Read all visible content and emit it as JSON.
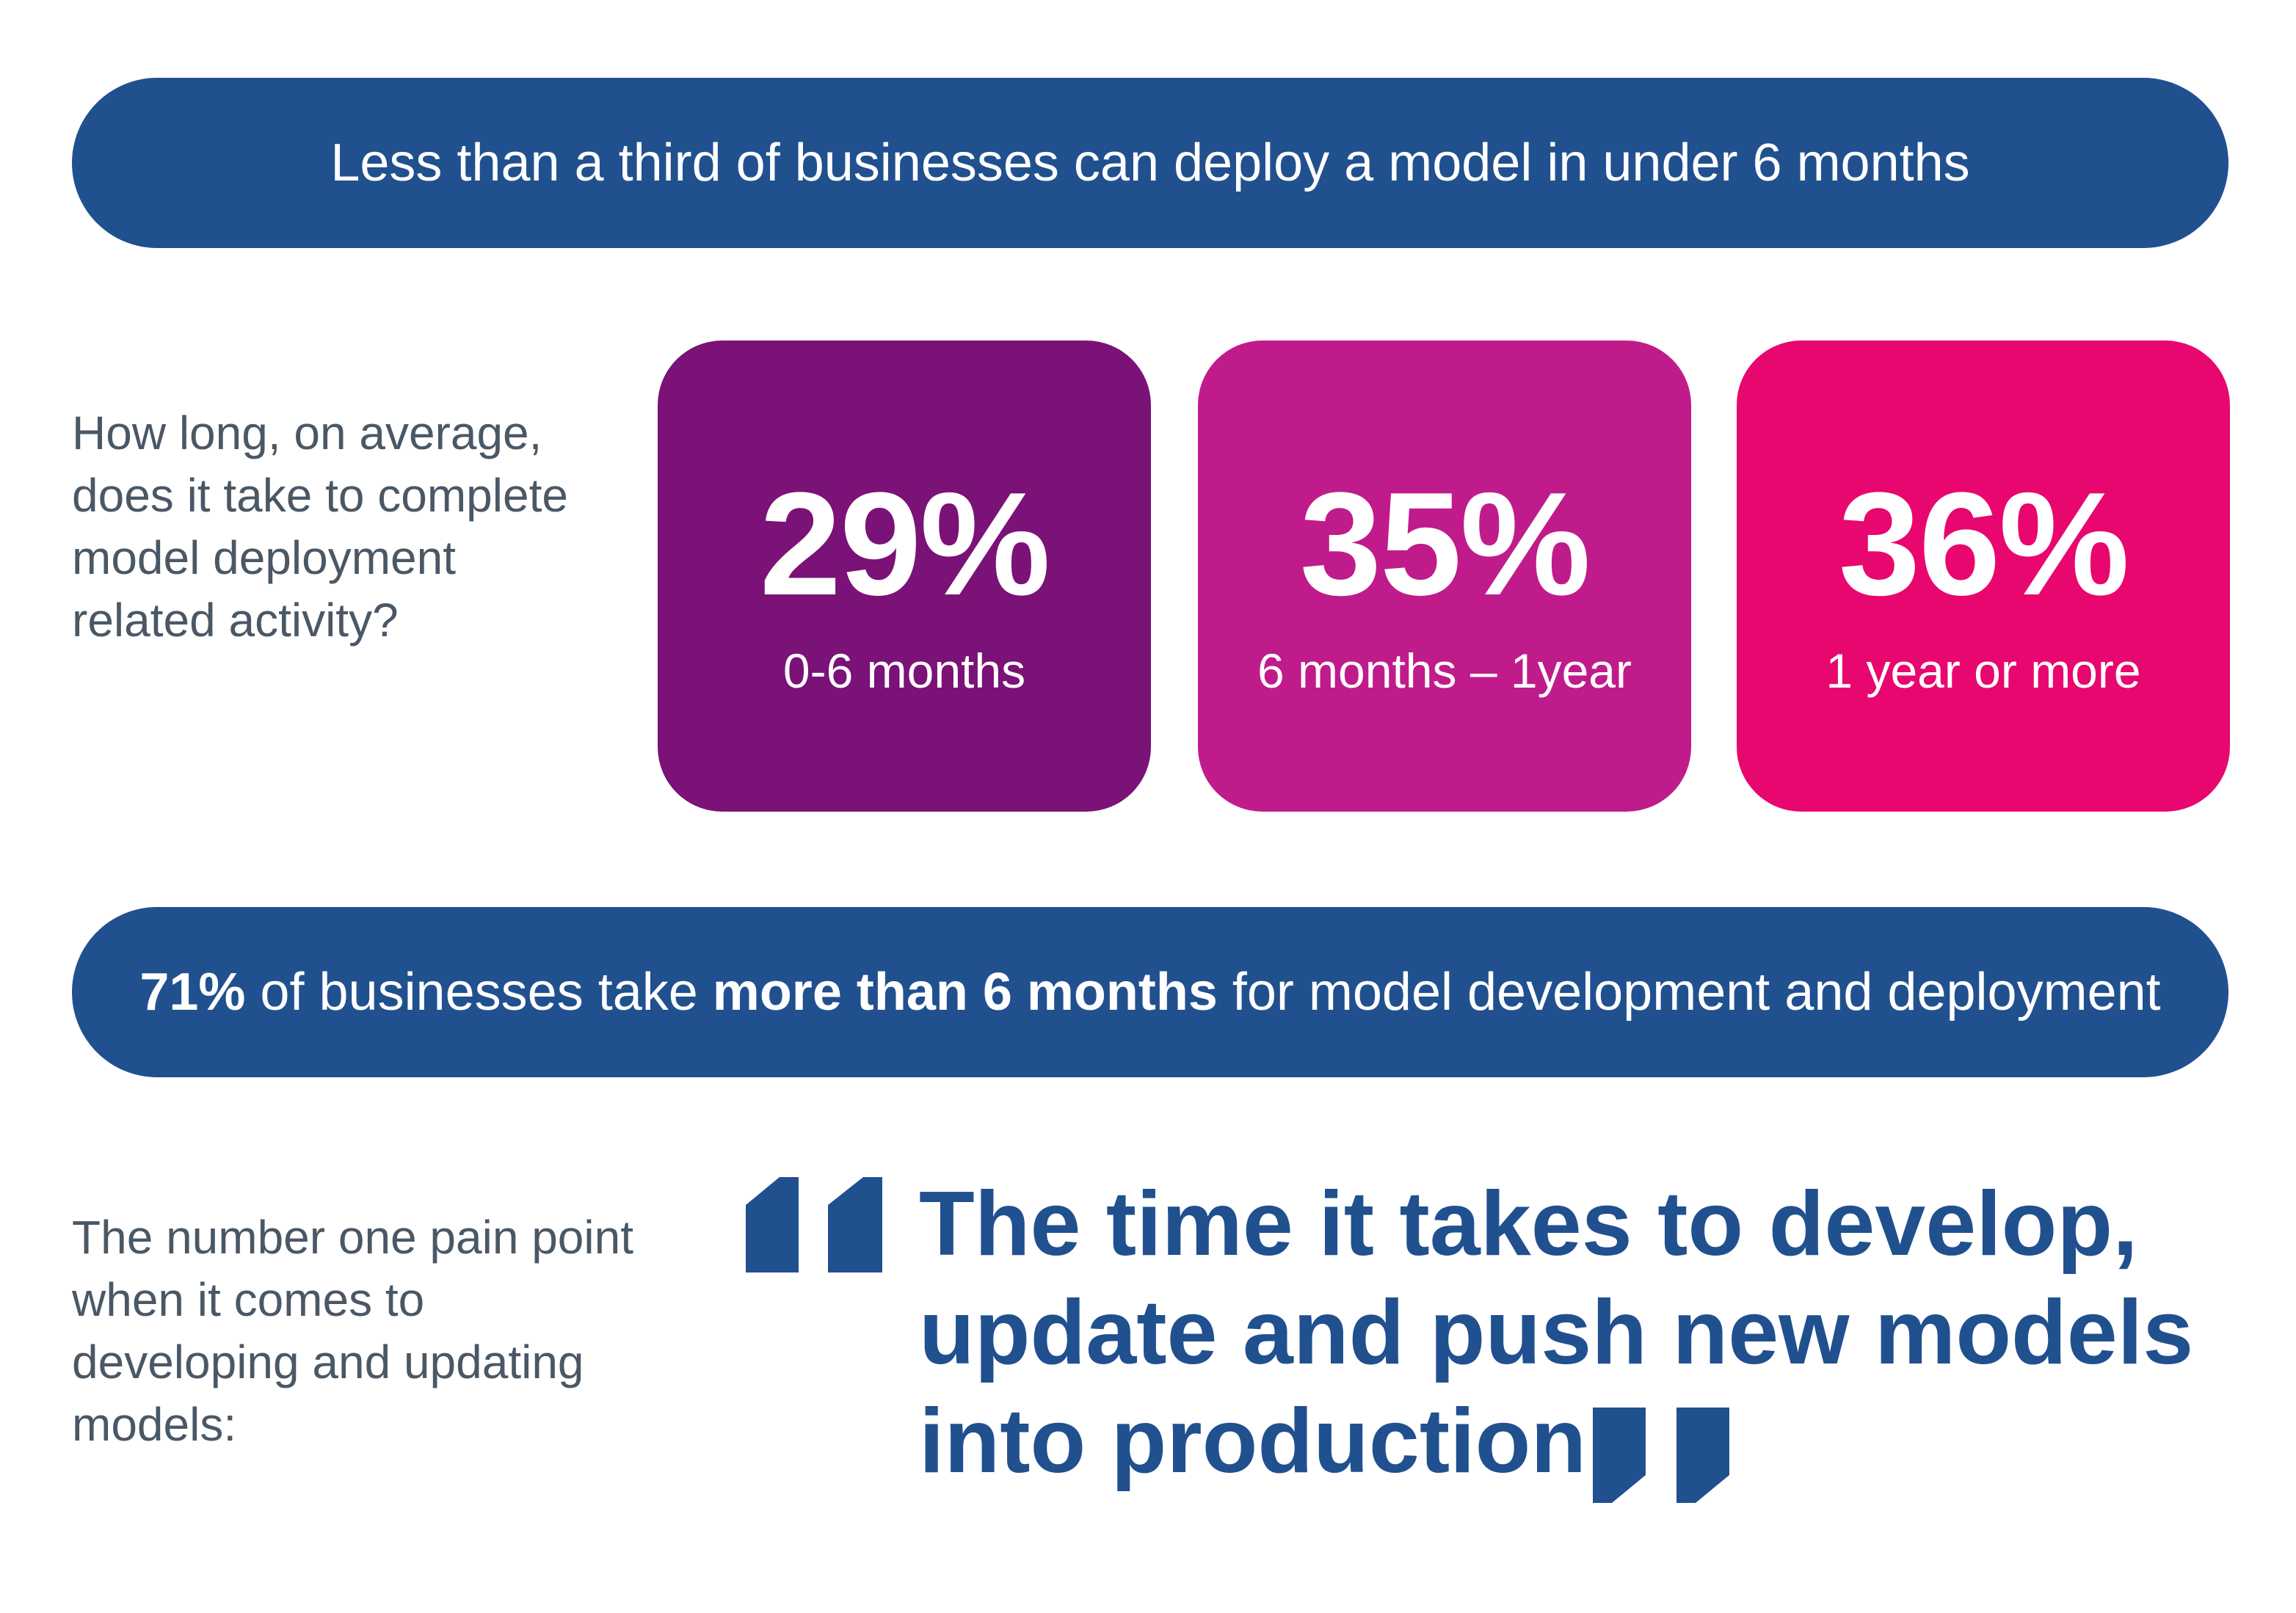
{
  "banner_top": {
    "text": "Less than a third of businesses can deploy a model in under 6 months"
  },
  "question": {
    "text": "How long, on average, does it take to complete model deployment related activity?"
  },
  "stats": [
    {
      "percent": "29%",
      "range": "0-6 months",
      "color": "#7a1277"
    },
    {
      "percent": "35%",
      "range": "6 months – 1year",
      "color": "#c01b8b"
    },
    {
      "percent": "36%",
      "range": "1 year or more",
      "color": "#e8076f"
    }
  ],
  "banner_bottom": {
    "lead_bold": "71%",
    "mid_text": " of businesses take ",
    "emphasis_bold": "more than 6 months",
    "tail_text": " for model development and deployment"
  },
  "pain_point": {
    "label": "The number one pain point when it comes to developing and updating models:",
    "quote": "The time it takes to develop, update and push new models into production"
  },
  "colors": {
    "banner_blue": "#21508f",
    "body_gray": "#4a5866"
  },
  "icons": {
    "open_quote": "open-quote-icon",
    "close_quote": "close-quote-icon"
  }
}
